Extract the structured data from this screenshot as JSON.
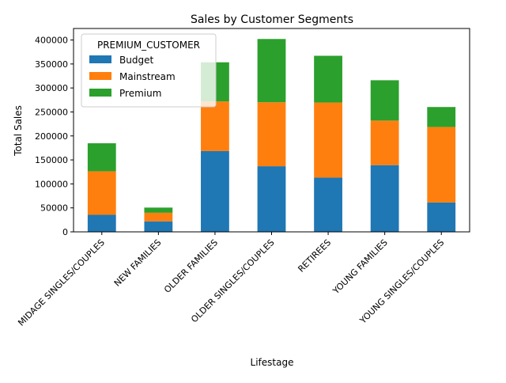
{
  "chart_data": {
    "type": "bar",
    "stacked": true,
    "title": "Sales by Customer Segments",
    "xlabel": "Lifestage",
    "ylabel": "Total Sales",
    "categories": [
      "MIDAGE SINGLES/COUPLES",
      "NEW FAMILIES",
      "OLDER FAMILIES",
      "OLDER SINGLES/COUPLES",
      "RETIREES",
      "YOUNG FAMILIES",
      "YOUNG SINGLES/COUPLES"
    ],
    "series": [
      {
        "name": "Budget",
        "color": "#1f77b4",
        "values": [
          35500,
          21900,
          168400,
          136800,
          113100,
          139100,
          61200
        ]
      },
      {
        "name": "Mainstream",
        "color": "#ff7f0e",
        "values": [
          90800,
          17900,
          103500,
          133400,
          156500,
          92900,
          157500
        ]
      },
      {
        "name": "Premium",
        "color": "#2ca02c",
        "values": [
          58400,
          10800,
          81600,
          131900,
          97500,
          84100,
          41600
        ]
      }
    ],
    "ylim": [
      0,
      424000
    ],
    "yticks": [
      0,
      50000,
      100000,
      150000,
      200000,
      250000,
      300000,
      350000,
      400000
    ],
    "legend": {
      "title": "PREMIUM_CUSTOMER",
      "position": "top-left"
    },
    "grid": false
  }
}
